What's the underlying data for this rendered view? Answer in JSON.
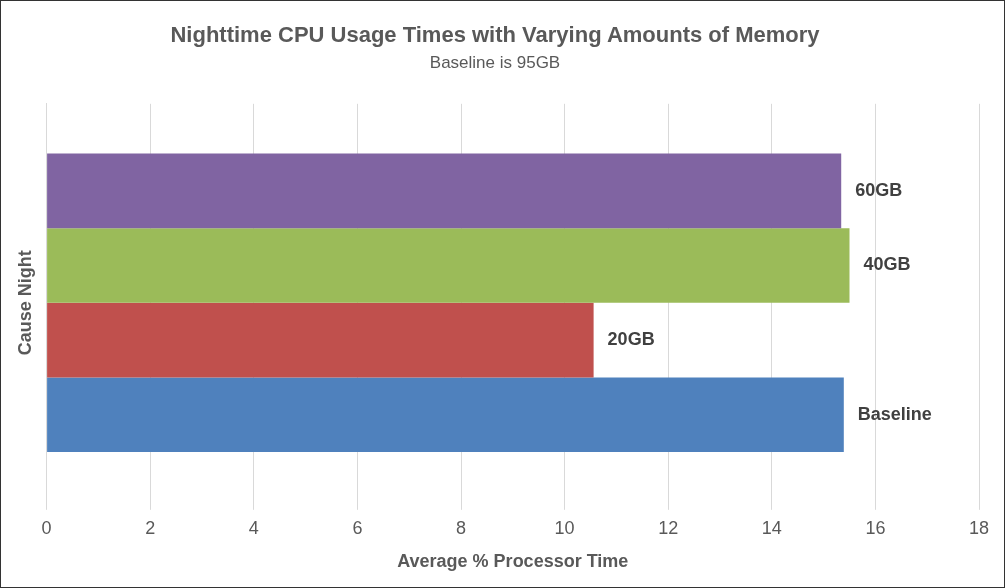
{
  "chart_data": {
    "type": "bar",
    "orientation": "horizontal",
    "title": "Nighttime CPU Usage Times with Varying Amounts of Memory",
    "subtitle": "Baseline is 95GB",
    "xlabel": "Average % Processor Time",
    "ylabel": "Cause Night",
    "categories": [
      null
    ],
    "series": [
      {
        "name": "60GB",
        "color": "#8064a2",
        "values": [
          15.34
        ]
      },
      {
        "name": "40GB",
        "color": "#9bbb59",
        "values": [
          15.5
        ]
      },
      {
        "name": "20GB",
        "color": "#c0504d",
        "values": [
          10.56
        ]
      },
      {
        "name": "Baseline",
        "color": "#4f81bd",
        "values": [
          15.39
        ]
      }
    ],
    "xlim": [
      0,
      18
    ],
    "xticks": [
      0,
      2,
      4,
      6,
      8,
      10,
      12,
      14,
      16,
      18
    ],
    "grid": "x",
    "legend": false
  }
}
